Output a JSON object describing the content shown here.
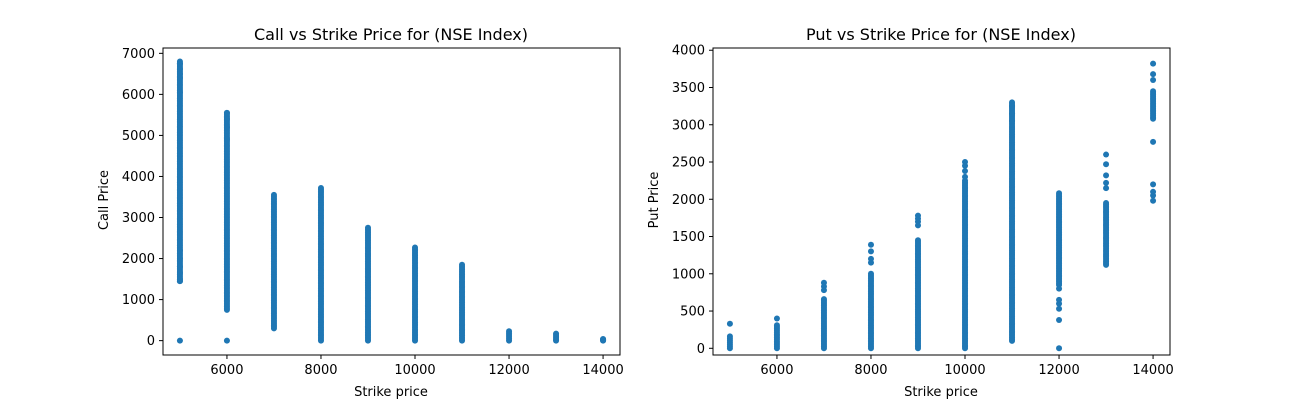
{
  "chart_data": [
    {
      "type": "scatter",
      "title": "Call vs Strike Price for (NSE Index)",
      "xlabel": "Strike price",
      "ylabel": "Call Price",
      "xlim": [
        4640,
        14360
      ],
      "ylim": [
        -350,
        7130
      ],
      "xticks": [
        6000,
        8000,
        10000,
        12000,
        14000
      ],
      "yticks": [
        0,
        1000,
        2000,
        3000,
        4000,
        5000,
        6000,
        7000
      ],
      "grid": false,
      "color": "#1f77b4",
      "series": [
        {
          "strike_groups": [
            {
              "x": 5000,
              "range": [
                1450,
                6800
              ],
              "outliers": [
                0,
                6750,
                6620,
                6500,
                6400,
                6050,
                1450,
                1500,
                1650,
                1800,
                2000,
                2200
              ]
            },
            {
              "x": 6000,
              "range": [
                750,
                5550
              ],
              "outliers": [
                0,
                5550,
                5400,
                5200,
                4900
              ]
            },
            {
              "x": 7000,
              "range": [
                300,
                3550
              ],
              "outliers": []
            },
            {
              "x": 8000,
              "range": [
                0,
                3720
              ],
              "outliers": []
            },
            {
              "x": 9000,
              "range": [
                0,
                2750
              ],
              "outliers": []
            },
            {
              "x": 10000,
              "range": [
                0,
                2270
              ],
              "outliers": []
            },
            {
              "x": 11000,
              "range": [
                0,
                1850
              ],
              "outliers": []
            },
            {
              "x": 12000,
              "range": [
                0,
                230
              ],
              "outliers": []
            },
            {
              "x": 13000,
              "range": [
                0,
                170
              ],
              "outliers": []
            },
            {
              "x": 14000,
              "range": [
                0,
                40
              ],
              "outliers": []
            }
          ]
        }
      ]
    },
    {
      "type": "scatter",
      "title": "Put vs Strike Price for (NSE Index)",
      "xlabel": "Strike price",
      "ylabel": "Put Price",
      "xlim": [
        4640,
        14360
      ],
      "ylim": [
        -90,
        4030
      ],
      "xticks": [
        6000,
        8000,
        10000,
        12000,
        14000
      ],
      "yticks": [
        0,
        500,
        1000,
        1500,
        2000,
        2500,
        3000,
        3500,
        4000
      ],
      "grid": false,
      "color": "#1f77b4",
      "series": [
        {
          "strike_groups": [
            {
              "x": 5000,
              "range": [
                0,
                160
              ],
              "outliers": [
                330
              ]
            },
            {
              "x": 6000,
              "range": [
                0,
                310
              ],
              "outliers": [
                400
              ]
            },
            {
              "x": 7000,
              "range": [
                0,
                660
              ],
              "outliers": [
                880,
                830,
                780
              ]
            },
            {
              "x": 8000,
              "range": [
                0,
                1000
              ],
              "outliers": [
                1390,
                1300,
                1200,
                1150
              ]
            },
            {
              "x": 9000,
              "range": [
                0,
                1450
              ],
              "outliers": [
                1780,
                1740,
                1700,
                1650
              ]
            },
            {
              "x": 10000,
              "range": [
                0,
                2250
              ],
              "outliers": [
                2500,
                2450,
                2380,
                2300
              ]
            },
            {
              "x": 11000,
              "range": [
                100,
                3300
              ],
              "outliers": [
                3250,
                3150,
                3050
              ]
            },
            {
              "x": 12000,
              "range": [
                850,
                2080
              ],
              "outliers": [
                0,
                380,
                530,
                600,
                650,
                800
              ]
            },
            {
              "x": 13000,
              "range": [
                1120,
                1950
              ],
              "outliers": [
                2600,
                2470,
                2320,
                2220,
                2150
              ]
            },
            {
              "x": 14000,
              "range": [
                3080,
                3450
              ],
              "outliers": [
                3820,
                3680,
                3600,
                2770,
                2200,
                2100,
                2050,
                1980
              ]
            }
          ]
        }
      ]
    }
  ]
}
